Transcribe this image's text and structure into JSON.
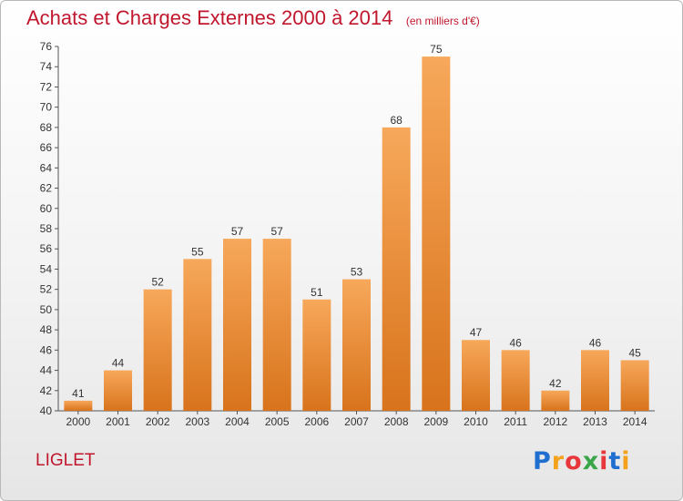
{
  "chart_title": "Achats et Charges Externes 2000 à 2014",
  "chart_subtitle": "(en milliers d'€)",
  "commune": "LIGLET",
  "logo": {
    "letters": [
      "P",
      "r",
      "o",
      "x",
      "i",
      "t",
      "i"
    ],
    "colors": [
      "#1f6fd1",
      "#f4a21c",
      "#e8373b",
      "#3aa64a",
      "#e8373b",
      "#1f6fd1",
      "#f4a21c"
    ]
  },
  "chart_data": {
    "type": "bar",
    "title": "Achats et Charges Externes 2000 à 2014",
    "subtitle": "(en milliers d'€)",
    "categories": [
      "2000",
      "2001",
      "2002",
      "2003",
      "2004",
      "2005",
      "2006",
      "2007",
      "2008",
      "2009",
      "2010",
      "2011",
      "2012",
      "2013",
      "2014"
    ],
    "values": [
      41,
      44,
      52,
      55,
      57,
      57,
      51,
      53,
      68,
      75,
      47,
      46,
      42,
      46,
      45
    ],
    "ylim": [
      40,
      76
    ],
    "yticks": [
      40,
      42,
      44,
      46,
      48,
      50,
      52,
      54,
      56,
      58,
      60,
      62,
      64,
      66,
      68,
      70,
      72,
      74,
      76
    ],
    "grid": false,
    "bar_color": "#ef8a2c"
  }
}
